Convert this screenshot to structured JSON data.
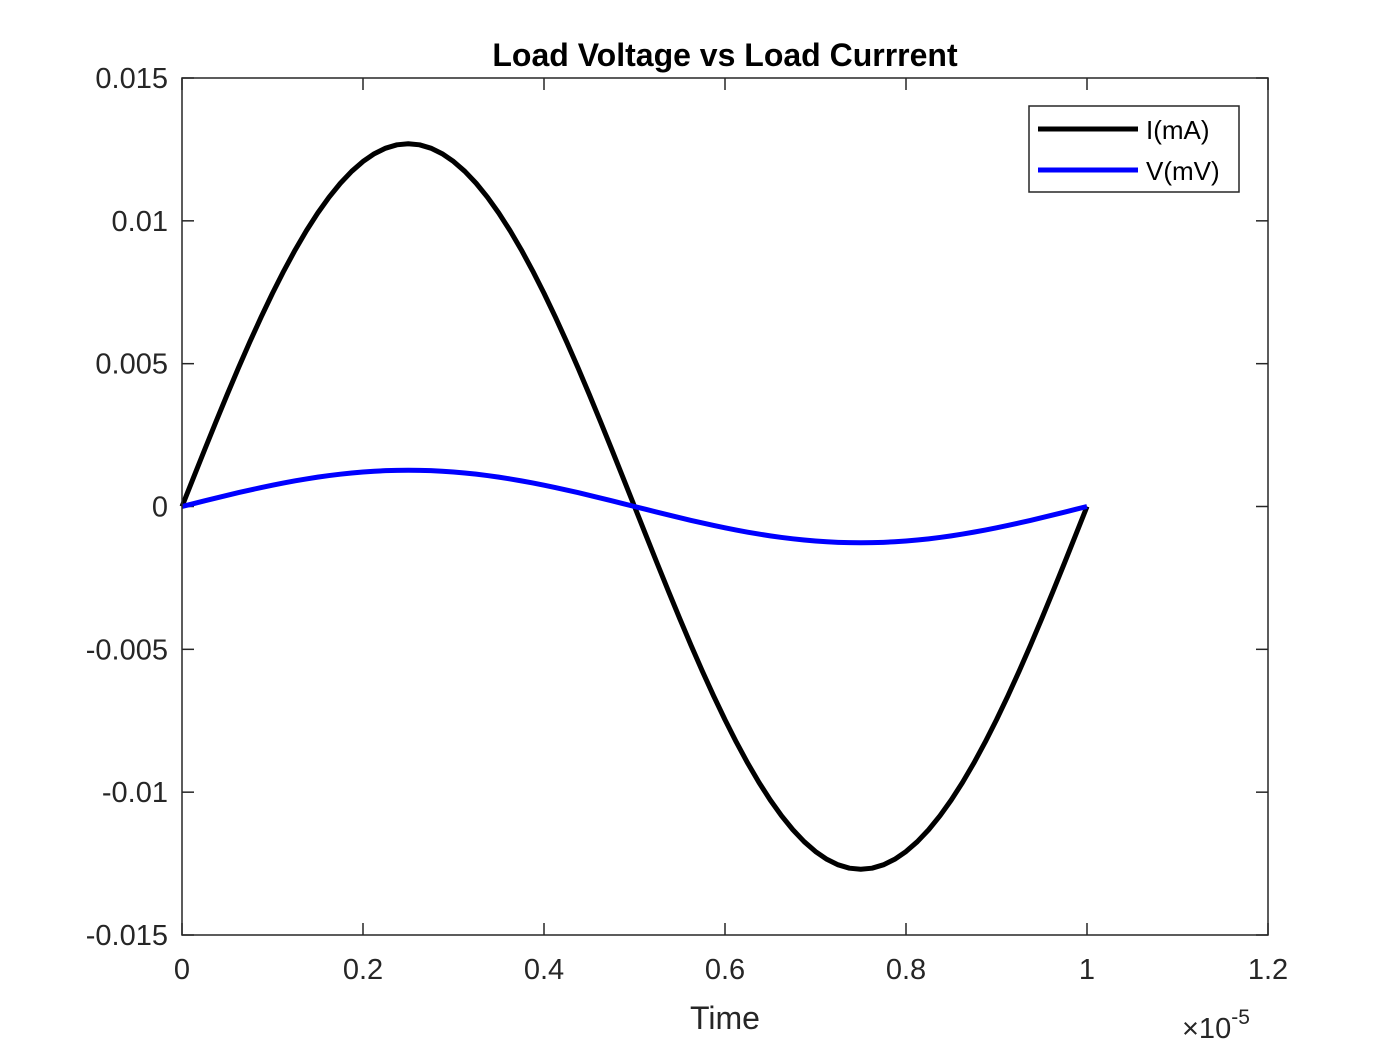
{
  "chart_data": {
    "type": "line",
    "title": "Load Voltage vs Load Currrent",
    "xlabel": "Time",
    "ylabel": "",
    "x_exponent_label": "×10",
    "x_exponent_power": "-5",
    "x_scale": 1e-05,
    "xlim": [
      0,
      1.2
    ],
    "ylim": [
      -0.015,
      0.015
    ],
    "xticks": [
      0,
      0.2,
      0.4,
      0.6,
      0.8,
      1,
      1.2
    ],
    "xtick_labels": [
      "0",
      "0.2",
      "0.4",
      "0.6",
      "0.8",
      "1",
      "1.2"
    ],
    "yticks": [
      0.015,
      0.01,
      0.005,
      0,
      -0.005,
      -0.01,
      -0.015
    ],
    "ytick_labels": [
      "0.015",
      "0.01",
      "0.005",
      "0",
      "-0.005",
      "-0.01",
      "-0.015"
    ],
    "grid": false,
    "legend_position": "top-right",
    "series": [
      {
        "name": "I(mA)",
        "color": "#000000",
        "x": [
          0,
          0.05,
          0.1,
          0.15,
          0.2,
          0.25,
          0.3,
          0.35,
          0.4,
          0.45,
          0.5,
          0.55,
          0.6,
          0.65,
          0.7,
          0.75,
          0.8,
          0.85,
          0.9,
          0.95,
          1
        ],
        "y": [
          0,
          0.00392,
          0.00746,
          0.01026,
          0.01207,
          0.0127,
          0.01207,
          0.01026,
          0.00746,
          0.00392,
          0,
          -0.00392,
          -0.00746,
          -0.01026,
          -0.01207,
          -0.0127,
          -0.01207,
          -0.01026,
          -0.00746,
          -0.00392,
          0
        ]
      },
      {
        "name": "V(mV)",
        "color": "#0000ff",
        "x": [
          0,
          0.05,
          0.1,
          0.15,
          0.2,
          0.25,
          0.3,
          0.35,
          0.4,
          0.45,
          0.5,
          0.55,
          0.6,
          0.65,
          0.7,
          0.75,
          0.8,
          0.85,
          0.9,
          0.95,
          1
        ],
        "y": [
          0,
          0.000392,
          0.000746,
          0.001026,
          0.001207,
          0.00127,
          0.001207,
          0.001026,
          0.000746,
          0.000392,
          0,
          -0.000392,
          -0.000746,
          -0.001026,
          -0.001207,
          -0.00127,
          -0.001207,
          -0.001026,
          -0.000746,
          -0.000392,
          0
        ]
      }
    ]
  }
}
